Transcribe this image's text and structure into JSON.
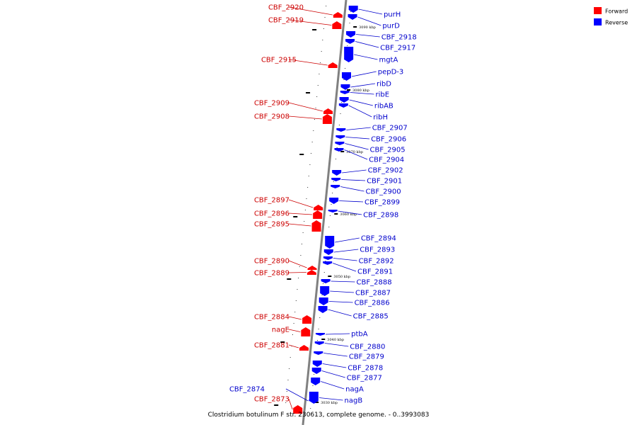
{
  "colors": {
    "forward": "#ff0000",
    "reverse": "#0000ff",
    "forward_label": "#cc0000",
    "reverse_label": "#0000cc",
    "axis": "#808080",
    "line": "#888888"
  },
  "legend": [
    {
      "label": "Forward",
      "color": "#ff0000"
    },
    {
      "label": "Reverse",
      "color": "#0000ff"
    }
  ],
  "caption": "Clostridium botulinum F str. 230613, complete genome. - 0..3993083",
  "kbp_ticks": [
    "3090 kbp",
    "3080 kbp",
    "3070 kbp",
    "3060 kbp",
    "3050 kbp",
    "3040 kbp",
    "3030 kbp"
  ],
  "forward_genes": [
    "CBF_2920",
    "CBF_2919",
    "CBF_2915",
    "CBF_2909",
    "CBF_2908",
    "CBF_2897",
    "CBF_2896",
    "CBF_2895",
    "CBF_2890",
    "CBF_2889",
    "CBF_2884",
    "nagE",
    "CBF_2881",
    "CBF_2873"
  ],
  "reverse_genes": [
    "purH",
    "purD",
    "CBF_2918",
    "CBF_2917",
    "mgtA",
    "pepD-3",
    "ribD",
    "ribE",
    "ribAB",
    "ribH",
    "CBF_2907",
    "CBF_2906",
    "CBF_2905",
    "CBF_2904",
    "CBF_2902",
    "CBF_2901",
    "CBF_2900",
    "CBF_2899",
    "CBF_2898",
    "CBF_2894",
    "CBF_2893",
    "CBF_2892",
    "CBF_2891",
    "CBF_2888",
    "CBF_2887",
    "CBF_2886",
    "CBF_2885",
    "ptbA",
    "CBF_2880",
    "CBF_2879",
    "CBF_2878",
    "CBF_2877",
    "nagA",
    "nagB",
    "CBF_2874"
  ]
}
